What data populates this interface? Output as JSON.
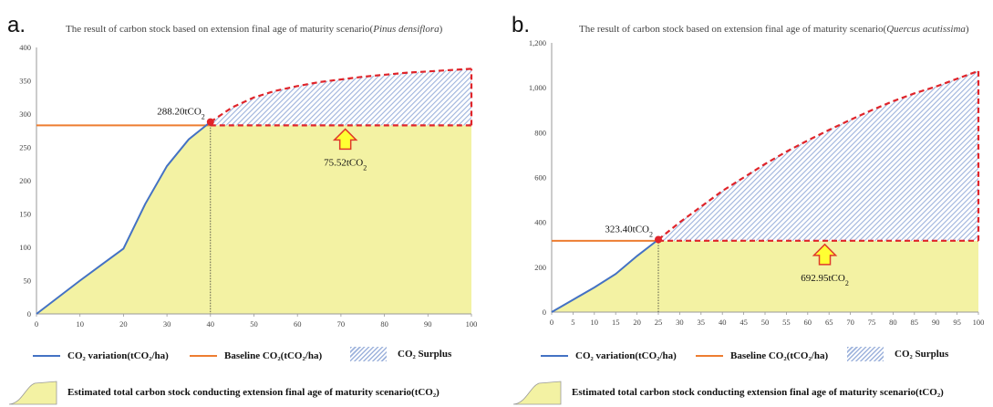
{
  "panels": [
    {
      "letter": "a.",
      "title_prefix": "The result of carbon stock based on extension final age of maturity scenario(",
      "title_species": "Pinus densiflora",
      "title_suffix": ")",
      "annotation_point": "288.20tCO",
      "annotation_point_sub": "2",
      "annotation_surplus": "75.52tCO",
      "annotation_surplus_sub": "2"
    },
    {
      "letter": "b.",
      "title_prefix": "The result of carbon stock based on extension final age of maturity scenario(",
      "title_species": "Quercus acutissima",
      "title_suffix": ")",
      "annotation_point": "323.40tCO",
      "annotation_point_sub": "2",
      "annotation_surplus": "692.95tCO",
      "annotation_surplus_sub": "2"
    }
  ],
  "legend": {
    "variation": "CO₂ variation(tCO₂/ha)",
    "baseline": "Baseline CO₂(tCO₂/ha)",
    "surplus": "CO₂ Surplus",
    "estimated": "Estimated total carbon stock conducting extension final age of maturity scenario(tCO₂)"
  },
  "colors": {
    "variation_line": "#4472c4",
    "baseline_line": "#ed7d31",
    "area_fill": "#f3f2a3",
    "surplus_hatch": "#9eb3dc",
    "dashed_border": "#e0242a",
    "marker": "#e0242a",
    "arrow_fill": "#ffff33",
    "arrow_stroke": "#e03a2a"
  },
  "chart_data": [
    {
      "type": "area",
      "x": [
        0,
        5,
        10,
        15,
        20,
        25,
        30,
        35,
        40,
        45,
        50,
        55,
        60,
        65,
        70,
        75,
        80,
        85,
        90,
        95,
        100
      ],
      "series": [
        {
          "name": "CO₂ variation(tCO₂/ha)",
          "values": [
            0,
            25,
            50,
            74,
            98,
            165,
            222,
            262,
            288.2,
            310,
            325,
            335,
            342,
            348,
            352,
            356,
            359,
            362,
            364,
            366,
            368
          ]
        },
        {
          "name": "Baseline CO₂(tCO₂/ha)",
          "x": [
            0,
            100
          ],
          "values": [
            283,
            283
          ]
        }
      ],
      "marker": {
        "x": 40,
        "y": 288.2
      },
      "xlim": [
        0,
        100
      ],
      "ylim": [
        0,
        400
      ],
      "xticks": [
        0,
        10,
        20,
        30,
        40,
        50,
        60,
        70,
        80,
        90,
        100
      ],
      "yticks": [
        0,
        50,
        100,
        150,
        200,
        250,
        300,
        350,
        400
      ],
      "ytick_labels": [
        "0",
        "50",
        "100",
        "150",
        "200",
        "250",
        "300",
        "350",
        "400"
      ],
      "surplus_from_x": 40,
      "arrow_x": 71
    },
    {
      "type": "area",
      "x": [
        0,
        5,
        10,
        15,
        20,
        25,
        30,
        35,
        40,
        45,
        50,
        55,
        60,
        65,
        70,
        75,
        80,
        85,
        90,
        95,
        100
      ],
      "series": [
        {
          "name": "CO₂ variation(tCO₂/ha)",
          "values": [
            0,
            55,
            110,
            170,
            250,
            323.4,
            400,
            470,
            540,
            600,
            660,
            715,
            765,
            812,
            857,
            900,
            940,
            975,
            1005,
            1040,
            1075
          ]
        },
        {
          "name": "Baseline CO₂(tCO₂/ha)",
          "x": [
            0,
            100
          ],
          "values": [
            318,
            318
          ]
        }
      ],
      "marker": {
        "x": 25,
        "y": 323.4
      },
      "xlim": [
        0,
        100
      ],
      "ylim": [
        0,
        1200
      ],
      "xticks": [
        0,
        5,
        10,
        15,
        20,
        25,
        30,
        35,
        40,
        45,
        50,
        55,
        60,
        65,
        70,
        75,
        80,
        85,
        90,
        95,
        100
      ],
      "yticks": [
        0,
        200,
        400,
        600,
        800,
        1000,
        1200
      ],
      "ytick_labels": [
        "0",
        "200",
        "400",
        "600",
        "800",
        "1,000",
        "1,200"
      ],
      "surplus_from_x": 25,
      "arrow_x": 64
    }
  ]
}
